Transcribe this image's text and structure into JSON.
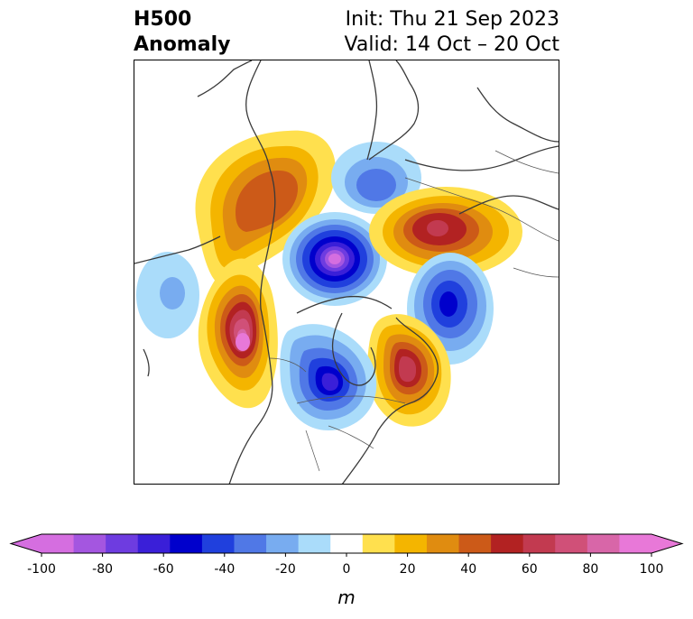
{
  "title": {
    "left_line1": "H500",
    "left_line2": "Anomaly",
    "right_line1": "Init: Thu 21 Sep 2023",
    "right_line2": "Valid: 14 Oct – 20 Oct"
  },
  "map": {
    "projection": "north-polar-stereographic",
    "region": "North America and Arctic",
    "field": "500 hPa geopotential height anomaly"
  },
  "colorbar": {
    "unit": "m",
    "min": -100,
    "max": 100,
    "step": 10,
    "extend": "both",
    "tick_labels": [
      "-100",
      "-80",
      "-60",
      "-40",
      "-20",
      "0",
      "20",
      "40",
      "60",
      "80",
      "100"
    ],
    "colors": [
      "#d56ee0",
      "#a456e0",
      "#6e3ce0",
      "#3a1fd8",
      "#0000cc",
      "#2040dd",
      "#5078e6",
      "#78acf0",
      "#aadcfa",
      "#ffffff",
      "#ffe04e",
      "#f4b500",
      "#e08c10",
      "#cc5a18",
      "#b22222",
      "#c23a50",
      "#d05078",
      "#d866a8",
      "#e878d8"
    ],
    "neg_extend_color": "#d56ee0",
    "pos_extend_color": "#e878d8"
  },
  "anomalies": [
    {
      "name": "central-canada-ridge",
      "value": 50
    },
    {
      "name": "arctic-low",
      "value": -100
    },
    {
      "name": "north-pacific-low",
      "value": -40
    },
    {
      "name": "alaska-ridge",
      "value": 100
    },
    {
      "name": "central-us-low",
      "value": -80
    },
    {
      "name": "east-us-ridge",
      "value": 70
    },
    {
      "name": "greenland-low",
      "value": -70
    },
    {
      "name": "iceland-low",
      "value": -40
    },
    {
      "name": "siberia-ridge",
      "value": 70
    }
  ]
}
